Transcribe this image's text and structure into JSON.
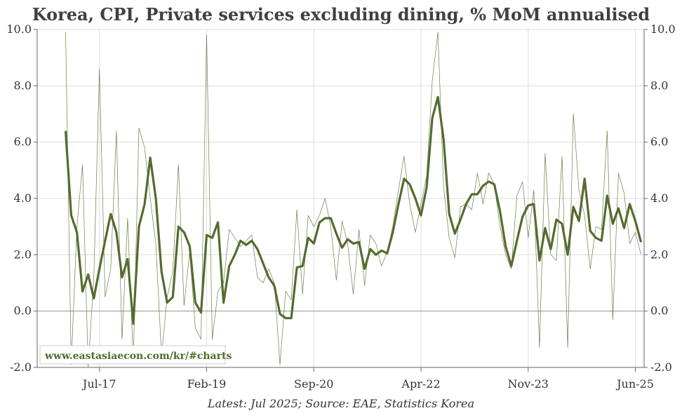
{
  "chart_data": {
    "type": "line",
    "title": "Korea, CPI, Private services excluding dining, % MoM annualised",
    "footer": "Latest: Jul 2025; Source: EAE, Statistics Korea",
    "watermark": "www.eastasiaecon.com/kr/#charts",
    "ylim": [
      -2,
      10
    ],
    "yticks": [
      "10.0",
      "8.0",
      "6.0",
      "4.0",
      "2.0",
      "0.0",
      "-2.0"
    ],
    "ytick_values": [
      10,
      8,
      6,
      4,
      2,
      0,
      -2
    ],
    "xticks": [
      "Jul-17",
      "Feb-19",
      "Sep-20",
      "Apr-22",
      "Nov-23",
      "Jun-25"
    ],
    "x_start": "Jan-17",
    "x_end": "Jul-25",
    "grid": true,
    "colors": {
      "smoothed": "#556b2f",
      "raw": "#6b7f4a",
      "zero_line": "#999999",
      "grid": "#dddddd"
    },
    "series": [
      {
        "kind": "smoothed",
        "start": "Jan-17",
        "values": [
          6.4,
          3.4,
          2.8,
          0.7,
          1.3,
          0.45,
          1.5,
          2.5,
          3.45,
          2.8,
          1.2,
          1.85,
          -0.45,
          3.0,
          3.8,
          5.45,
          4.0,
          1.4,
          0.3,
          0.5,
          3.0,
          2.8,
          2.3,
          0.3,
          -0.05,
          2.7,
          2.6,
          3.15,
          0.3,
          1.6,
          2.0,
          2.5,
          2.35,
          2.5,
          2.2,
          1.7,
          1.2,
          0.9,
          -0.1,
          -0.25,
          -0.25,
          1.55,
          1.6,
          2.6,
          2.4,
          3.15,
          3.3,
          3.3,
          2.75,
          2.25,
          2.55,
          2.4,
          2.45,
          1.5,
          2.2,
          2.0,
          2.15,
          2.05,
          2.8,
          3.8,
          4.7,
          4.5,
          4.0,
          3.4,
          4.4,
          6.85,
          7.6,
          6.1,
          3.45,
          2.75,
          3.25,
          3.8,
          4.15,
          4.15,
          4.45,
          4.6,
          4.5,
          3.55,
          2.3,
          1.6,
          2.5,
          3.35,
          3.75,
          3.8,
          1.8,
          2.95,
          2.2,
          3.25,
          3.1,
          2.0,
          3.7,
          3.2,
          4.7,
          2.85,
          2.6,
          2.5,
          4.1,
          3.1,
          3.65,
          2.95,
          3.8,
          3.2,
          2.45
        ]
      },
      {
        "kind": "raw",
        "start": "Jan-17",
        "values": [
          9.9,
          -1.9,
          3.0,
          5.2,
          -2.0,
          1.2,
          8.6,
          0.5,
          1.5,
          6.4,
          -1.0,
          3.3,
          -1.8,
          6.5,
          5.8,
          4.0,
          2.4,
          -1.6,
          0.5,
          1.4,
          5.2,
          0.2,
          2.1,
          -0.6,
          -1.0,
          9.8,
          -1.0,
          0.7,
          1.0,
          2.9,
          2.6,
          2.3,
          2.5,
          2.7,
          1.2,
          1.0,
          1.5,
          1.0,
          -1.9,
          0.7,
          0.4,
          3.6,
          0.6,
          3.4,
          3.0,
          3.4,
          4.0,
          3.0,
          1.1,
          3.2,
          2.4,
          0.6,
          2.9,
          0.9,
          2.7,
          2.4,
          1.6,
          2.1,
          3.0,
          4.3,
          5.5,
          3.8,
          2.8,
          3.8,
          4.8,
          8.2,
          9.9,
          4.4,
          2.6,
          1.9,
          3.7,
          3.8,
          3.6,
          4.9,
          3.8,
          4.9,
          4.5,
          3.0,
          2.0,
          1.5,
          4.1,
          4.6,
          2.6,
          4.3,
          -1.3,
          5.6,
          2.0,
          1.8,
          5.5,
          -1.3,
          7.0,
          4.3,
          3.4,
          1.5,
          3.0,
          2.9,
          6.4,
          -0.3,
          4.9,
          4.2,
          2.4,
          2.8,
          2.0
        ]
      }
    ]
  }
}
